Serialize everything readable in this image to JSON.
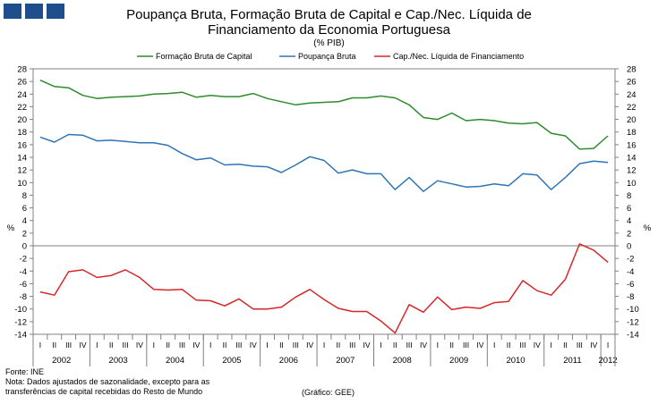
{
  "header": {
    "title_line1": "Poupança Bruta, Formação Bruta de Capital e Cap./Nec. Líquida de",
    "title_line2": "Financiamento da Economia Portuguesa",
    "subtitle": "(% PIB)"
  },
  "footer": {
    "source": "Fonte: INE",
    "note_line1": "Nota: Dados ajustados de sazonalidade, excepto para as",
    "note_line2": "transferências de capital recebidas do Resto de Mundo",
    "credit": "(Gráfico: GEE)"
  },
  "chart_data": {
    "type": "line",
    "title": "Poupança Bruta, Formação Bruta de Capital e Cap./Nec. Líquida de Financiamento da Economia Portuguesa",
    "ylabel": "%",
    "y2label": "%",
    "ylim": [
      -14,
      28
    ],
    "yticks": [
      -14,
      -12,
      -10,
      -8,
      -6,
      -4,
      -2,
      0,
      2,
      4,
      6,
      8,
      10,
      12,
      14,
      16,
      18,
      20,
      22,
      24,
      26,
      28
    ],
    "grid": false,
    "legend_position": "top",
    "quarter_labels": [
      "II",
      "III",
      "IV"
    ],
    "years": [
      "2002",
      "2003",
      "2004",
      "2005",
      "2006",
      "2007",
      "2008",
      "2009",
      "2010",
      "2011",
      "2012"
    ],
    "x": [
      "2002Q1",
      "2002Q2",
      "2002Q3",
      "2002Q4",
      "2003Q1",
      "2003Q2",
      "2003Q3",
      "2003Q4",
      "2004Q1",
      "2004Q2",
      "2004Q3",
      "2004Q4",
      "2005Q1",
      "2005Q2",
      "2005Q3",
      "2005Q4",
      "2006Q1",
      "2006Q2",
      "2006Q3",
      "2006Q4",
      "2007Q1",
      "2007Q2",
      "2007Q3",
      "2007Q4",
      "2008Q1",
      "2008Q2",
      "2008Q3",
      "2008Q4",
      "2009Q1",
      "2009Q2",
      "2009Q3",
      "2009Q4",
      "2010Q1",
      "2010Q2",
      "2010Q3",
      "2010Q4",
      "2011Q1",
      "2011Q2",
      "2011Q3",
      "2011Q4",
      "2012Q1"
    ],
    "series": [
      {
        "name": "Formação Bruta de Capital",
        "color": "#2e8b2e",
        "values": [
          26.2,
          25.2,
          25.0,
          23.8,
          23.3,
          23.5,
          23.6,
          23.7,
          24.0,
          24.1,
          24.3,
          23.5,
          23.8,
          23.6,
          23.6,
          24.1,
          23.3,
          22.8,
          22.3,
          22.6,
          22.7,
          22.8,
          23.4,
          23.4,
          23.7,
          23.4,
          22.3,
          20.3,
          20.0,
          21.0,
          19.8,
          20.0,
          19.8,
          19.4,
          19.3,
          19.5,
          17.8,
          17.4,
          15.3,
          15.4,
          17.4
        ]
      },
      {
        "name": "Poupança Bruta",
        "color": "#2e75b6",
        "values": [
          17.2,
          16.4,
          17.6,
          17.5,
          16.6,
          16.7,
          16.5,
          16.3,
          16.3,
          15.9,
          14.6,
          13.6,
          13.9,
          12.8,
          12.9,
          12.6,
          12.5,
          11.6,
          12.8,
          14.1,
          13.5,
          11.5,
          12.0,
          11.4,
          11.4,
          8.9,
          10.8,
          8.6,
          10.3,
          9.8,
          9.3,
          9.4,
          9.8,
          9.5,
          11.4,
          11.2,
          8.9,
          10.8,
          13.0,
          13.4,
          13.2
        ]
      },
      {
        "name": "Cap./Nec. Líquida de Financiamento",
        "color": "#d62728",
        "values": [
          -7.3,
          -7.8,
          -4.1,
          -3.8,
          -5.0,
          -4.7,
          -3.8,
          -5.0,
          -6.9,
          -7.0,
          -6.9,
          -8.6,
          -8.7,
          -9.5,
          -8.4,
          -10.0,
          -10.0,
          -9.7,
          -8.1,
          -6.9,
          -8.5,
          -9.9,
          -10.4,
          -10.4,
          -11.9,
          -13.8,
          -9.3,
          -10.5,
          -8.1,
          -10.1,
          -9.7,
          -9.9,
          -9.0,
          -8.8,
          -5.5,
          -7.1,
          -7.8,
          -5.3,
          0.3,
          -0.7,
          -2.6
        ]
      }
    ]
  }
}
